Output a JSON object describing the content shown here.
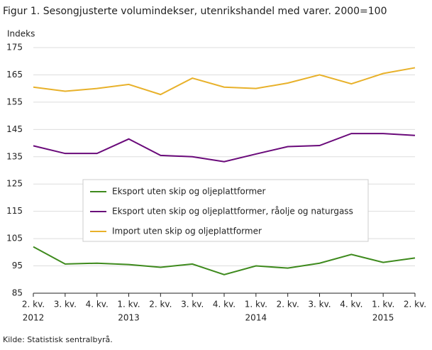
{
  "chart_data": {
    "type": "line",
    "title": "Figur 1. Sesongjusterte volumindekser, utenrikshandel med varer. 2000=100",
    "y_label": "Indeks",
    "source": "Kilde: Statistisk sentralbyrå.",
    "categories": [
      "2. kv.",
      "3. kv.",
      "4. kv.",
      "1. kv.",
      "2. kv.",
      "3. kv.",
      "4. kv.",
      "1. kv.",
      "2. kv.",
      "3. kv.",
      "4. kv.",
      "1. kv.",
      "2. kv."
    ],
    "category_years": [
      "2012",
      null,
      null,
      "2013",
      null,
      null,
      null,
      "2014",
      null,
      null,
      null,
      "2015",
      null
    ],
    "series": [
      {
        "name": "Eksport uten skip og oljeplattformer",
        "color": "#3e8a1d",
        "values": [
          102,
          95.7,
          96,
          95.5,
          94.5,
          95.7,
          91.8,
          95,
          94.2,
          96,
          99.2,
          96.3,
          97.9
        ]
      },
      {
        "name": "Eksport uten skip og oljeplattformer, råolje og naturgass",
        "color": "#6a0a7a",
        "values": [
          139,
          136.2,
          136.2,
          141.5,
          135.5,
          135,
          133.2,
          136,
          138.7,
          139.1,
          143.5,
          143.5,
          142.8
        ]
      },
      {
        "name": "Import uten skip og oljeplattformer",
        "color": "#e8b12a",
        "values": [
          160.5,
          159,
          160,
          161.5,
          157.8,
          163.8,
          160.5,
          160,
          162,
          165,
          161.7,
          165.5,
          167.6
        ]
      }
    ],
    "ylim": [
      85,
      175
    ],
    "yticks": [
      85,
      95,
      105,
      115,
      125,
      135,
      145,
      155,
      165,
      175
    ],
    "grid": true
  }
}
